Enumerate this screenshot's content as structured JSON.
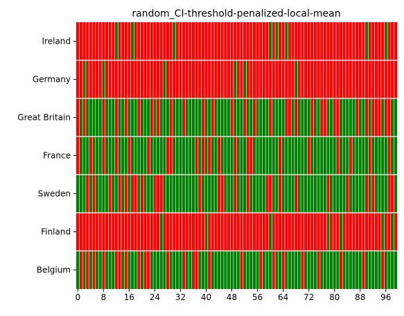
{
  "chart_data": {
    "type": "heatmap",
    "title": "random_CI-threshold-penalized-local-mean",
    "xlabel": "",
    "ylabel": "",
    "rows": [
      "Ireland",
      "Germany",
      "Great Britain",
      "France",
      "Sweden",
      "Finland",
      "Belgium"
    ],
    "n_columns": 100,
    "x_ticks": [
      0,
      8,
      16,
      24,
      32,
      40,
      48,
      56,
      64,
      72,
      80,
      88,
      96
    ],
    "colors": {
      "0": "#ff0000",
      "1": "#008000",
      "gap": "#ffffff"
    },
    "values": [
      [
        0,
        0,
        0,
        0,
        0,
        0,
        0,
        0,
        0,
        0,
        0,
        0,
        1,
        0,
        0,
        0,
        0,
        1,
        0,
        0,
        0,
        0,
        0,
        0,
        0,
        0,
        0,
        0,
        0,
        0,
        1,
        0,
        0,
        0,
        0,
        0,
        0,
        0,
        0,
        0,
        0,
        0,
        0,
        0,
        0,
        0,
        0,
        0,
        0,
        0,
        0,
        0,
        0,
        0,
        0,
        0,
        0,
        0,
        0,
        0,
        1,
        0,
        1,
        0,
        0,
        1,
        0,
        0,
        0,
        0,
        0,
        0,
        0,
        0,
        0,
        0,
        0,
        0,
        0,
        0,
        0,
        0,
        0,
        0,
        0,
        0,
        0,
        0,
        0,
        0,
        1,
        0,
        0,
        0,
        0,
        0,
        1,
        0,
        0,
        0
      ],
      [
        0,
        0,
        1,
        0,
        0,
        0,
        0,
        0,
        1,
        0,
        0,
        0,
        0,
        0,
        0,
        0,
        0,
        0,
        0,
        0,
        0,
        0,
        0,
        0,
        0,
        0,
        0,
        1,
        0,
        0,
        0,
        0,
        0,
        0,
        0,
        0,
        0,
        0,
        0,
        0,
        0,
        0,
        0,
        0,
        0,
        0,
        0,
        0,
        0,
        1,
        0,
        0,
        1,
        0,
        0,
        0,
        0,
        0,
        0,
        0,
        0,
        0,
        0,
        0,
        0,
        0,
        0,
        0,
        1,
        0,
        0,
        0,
        0,
        0,
        0,
        0,
        0,
        0,
        0,
        0,
        0,
        0,
        0,
        0,
        0,
        0,
        0,
        0,
        0,
        0,
        0,
        0,
        0,
        0,
        0,
        0,
        0,
        0,
        0,
        0
      ],
      [
        0,
        1,
        0,
        1,
        1,
        1,
        1,
        1,
        0,
        1,
        1,
        1,
        0,
        1,
        1,
        0,
        1,
        1,
        1,
        0,
        1,
        1,
        1,
        0,
        1,
        0,
        1,
        1,
        1,
        0,
        1,
        1,
        1,
        0,
        1,
        1,
        1,
        1,
        1,
        0,
        1,
        1,
        0,
        1,
        1,
        1,
        1,
        1,
        0,
        1,
        1,
        1,
        0,
        1,
        1,
        0,
        1,
        1,
        1,
        1,
        0,
        1,
        1,
        1,
        1,
        0,
        0,
        1,
        0,
        1,
        1,
        1,
        1,
        0,
        1,
        1,
        0,
        0,
        1,
        1,
        0,
        0,
        1,
        1,
        1,
        1,
        1,
        0,
        1,
        1,
        0,
        1,
        0,
        0,
        0,
        1,
        0,
        0,
        1,
        1
      ],
      [
        0,
        1,
        1,
        1,
        0,
        1,
        1,
        1,
        0,
        1,
        1,
        1,
        0,
        1,
        1,
        1,
        0,
        1,
        1,
        1,
        1,
        1,
        0,
        1,
        1,
        1,
        1,
        1,
        0,
        0,
        1,
        1,
        1,
        1,
        1,
        1,
        1,
        0,
        1,
        0,
        1,
        0,
        1,
        1,
        0,
        1,
        1,
        1,
        1,
        0,
        1,
        1,
        1,
        0,
        0,
        1,
        1,
        1,
        1,
        1,
        1,
        1,
        1,
        0,
        1,
        1,
        1,
        1,
        1,
        1,
        1,
        1,
        0,
        1,
        1,
        1,
        1,
        1,
        1,
        1,
        1,
        0,
        1,
        1,
        1,
        0,
        1,
        1,
        1,
        1,
        1,
        0,
        1,
        1,
        1,
        1,
        1,
        0,
        1,
        1
      ],
      [
        1,
        1,
        1,
        0,
        1,
        0,
        1,
        1,
        1,
        1,
        0,
        1,
        1,
        0,
        1,
        0,
        1,
        0,
        0,
        1,
        0,
        1,
        1,
        1,
        0,
        0,
        0,
        1,
        1,
        1,
        1,
        1,
        1,
        1,
        1,
        1,
        1,
        1,
        0,
        1,
        1,
        1,
        1,
        1,
        0,
        0,
        1,
        1,
        1,
        0,
        1,
        1,
        1,
        0,
        1,
        1,
        1,
        1,
        1,
        0,
        0,
        1,
        1,
        0,
        1,
        1,
        1,
        1,
        0,
        1,
        1,
        1,
        1,
        1,
        1,
        1,
        1,
        1,
        0,
        1,
        1,
        1,
        1,
        1,
        0,
        1,
        1,
        1,
        1,
        1,
        0,
        1,
        0,
        1,
        1,
        1,
        1,
        0,
        0,
        1
      ],
      [
        0,
        0,
        0,
        0,
        0,
        0,
        0,
        0,
        0,
        0,
        0,
        0,
        0,
        0,
        0,
        0,
        0,
        0,
        0,
        0,
        0,
        0,
        0,
        0,
        0,
        0,
        1,
        0,
        0,
        0,
        0,
        0,
        0,
        0,
        0,
        0,
        0,
        0,
        0,
        0,
        1,
        0,
        0,
        0,
        0,
        0,
        0,
        0,
        0,
        0,
        0,
        0,
        0,
        0,
        0,
        0,
        0,
        0,
        0,
        0,
        1,
        0,
        0,
        0,
        0,
        0,
        0,
        0,
        0,
        0,
        0,
        0,
        0,
        0,
        0,
        0,
        0,
        0,
        1,
        0,
        0,
        0,
        1,
        0,
        0,
        0,
        0,
        0,
        0,
        0,
        0,
        0,
        0,
        0,
        0,
        1,
        0,
        0,
        1,
        0
      ],
      [
        1,
        0,
        1,
        0,
        1,
        0,
        1,
        1,
        0,
        1,
        1,
        1,
        0,
        0,
        1,
        0,
        1,
        1,
        1,
        0,
        1,
        0,
        0,
        1,
        1,
        1,
        1,
        1,
        0,
        1,
        1,
        1,
        1,
        0,
        1,
        1,
        0,
        0,
        1,
        1,
        1,
        0,
        1,
        1,
        1,
        1,
        1,
        1,
        1,
        1,
        1,
        0,
        1,
        1,
        1,
        1,
        1,
        0,
        1,
        1,
        1,
        0,
        1,
        1,
        0,
        1,
        1,
        1,
        1,
        1,
        0,
        1,
        1,
        1,
        1,
        0,
        1,
        1,
        1,
        1,
        1,
        1,
        0,
        1,
        1,
        1,
        1,
        1,
        1,
        0,
        1,
        1,
        1,
        1,
        1,
        0,
        1,
        1,
        1,
        1
      ]
    ]
  }
}
